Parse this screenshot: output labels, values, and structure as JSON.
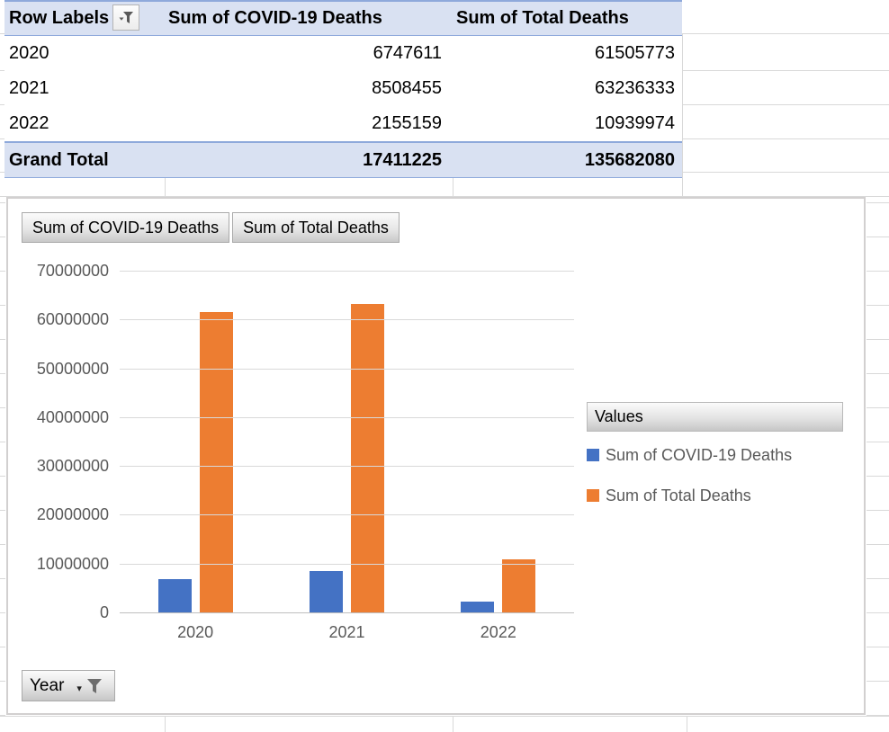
{
  "pivot_table": {
    "columns": [
      "Row Labels",
      "Sum of COVID-19 Deaths",
      "Sum of Total Deaths"
    ],
    "rows": [
      [
        "2020",
        "6747611",
        "61505773"
      ],
      [
        "2021",
        "8508455",
        "63236333"
      ],
      [
        "2022",
        "2155159",
        "10939974"
      ]
    ],
    "grand_total": [
      "Grand Total",
      "17411225",
      "135682080"
    ]
  },
  "chart": {
    "field_buttons": [
      "Sum of COVID-19 Deaths",
      "Sum of Total Deaths"
    ],
    "legend_title": "Values",
    "axis_field_button": "Year"
  },
  "chart_data": {
    "type": "bar",
    "categories": [
      "2020",
      "2021",
      "2022"
    ],
    "series": [
      {
        "name": "Sum of COVID-19 Deaths",
        "color": "#4472C4",
        "values": [
          6747611,
          8508455,
          2155159
        ]
      },
      {
        "name": "Sum of Total Deaths",
        "color": "#ED7D31",
        "values": [
          61505773,
          63236333,
          10939974
        ]
      }
    ],
    "title": "",
    "xlabel": "",
    "ylabel": "",
    "ylim": [
      0,
      70000000
    ],
    "yticks": [
      "0",
      "10000000",
      "20000000",
      "30000000",
      "40000000",
      "50000000",
      "60000000",
      "70000000"
    ],
    "grid": true,
    "legend_position": "right"
  },
  "colors": {
    "series1": "#4472C4",
    "series2": "#ED7D31",
    "table_header_bg": "#D9E1F2",
    "table_header_border": "#8EA9DB",
    "axis_text": "#595959",
    "gridline": "#D9D9D9"
  }
}
